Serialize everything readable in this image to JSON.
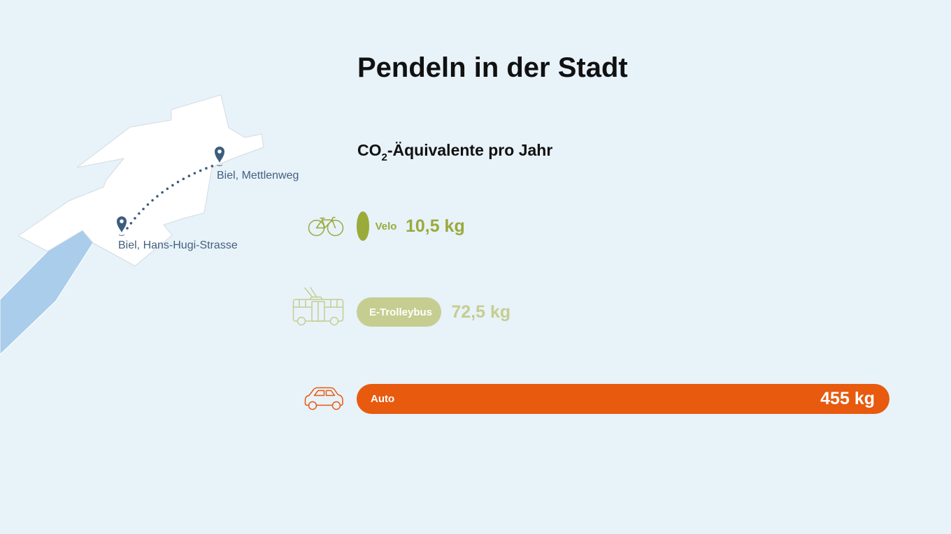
{
  "page": {
    "background": "#e8f2f9",
    "text_color": "#111111"
  },
  "header": {
    "title": "Pendeln in der Stadt"
  },
  "map": {
    "colors": {
      "city": "#ffffff",
      "city_border": "#d3dbe2",
      "lake": "#a9cdea",
      "pin": "#3d5d7e",
      "route": "#3d5d7e",
      "label": "#44607e"
    },
    "locations": [
      {
        "label": "Biel, Mettlenweg",
        "icon": "map-pin-icon"
      },
      {
        "label": "Biel, Hans-Hugi-Strasse",
        "icon": "map-pin-icon"
      }
    ]
  },
  "chart_data": {
    "type": "bar",
    "horizontal": true,
    "title": {
      "text": "CO",
      "subscript": "2",
      "suffix": "-Äquivalente pro Jahr"
    },
    "categories": [
      "Velo",
      "E-Trolleybus",
      "Auto"
    ],
    "values": [
      10.5,
      72.5,
      455
    ],
    "value_labels": [
      "10,5 kg",
      "72,5 kg",
      "455 kg"
    ],
    "colors": [
      "#9aaa3b",
      "#c6cd90",
      "#e85a0e"
    ],
    "category_icons": [
      "bicycle-icon",
      "trolleybus-icon",
      "car-icon"
    ],
    "xlim": [
      0,
      455
    ],
    "grid": false,
    "legend": "none"
  }
}
